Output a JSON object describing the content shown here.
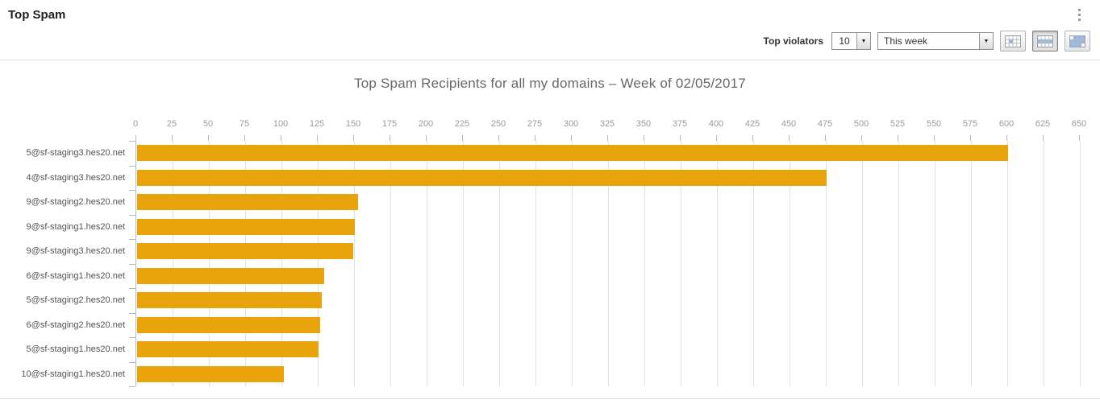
{
  "header": {
    "title": "Top Spam"
  },
  "toolbar": {
    "top_violators_label": "Top violators",
    "top_violators_value": "10",
    "period_value": "This week",
    "view_buttons": [
      {
        "name": "daily-view",
        "selected": false
      },
      {
        "name": "weekly-view",
        "selected": true
      },
      {
        "name": "monthly-view",
        "selected": false
      }
    ]
  },
  "chart_data": {
    "type": "bar",
    "orientation": "horizontal",
    "title": "Top Spam Recipients for all my domains – Week of 02/05/2017",
    "categories": [
      "5@sf-staging3.hes20.net",
      "4@sf-staging3.hes20.net",
      "9@sf-staging2.hes20.net",
      "9@sf-staging1.hes20.net",
      "9@sf-staging3.hes20.net",
      "6@sf-staging1.hes20.net",
      "5@sf-staging2.hes20.net",
      "6@sf-staging2.hes20.net",
      "5@sf-staging1.hes20.net",
      "10@sf-staging1.hes20.net"
    ],
    "values": [
      600,
      475,
      152,
      150,
      149,
      129,
      127,
      126,
      125,
      101
    ],
    "xlim": [
      0,
      650
    ],
    "x_ticks": [
      0,
      25,
      50,
      75,
      100,
      125,
      150,
      175,
      200,
      225,
      250,
      275,
      300,
      325,
      350,
      375,
      400,
      425,
      450,
      475,
      500,
      525,
      550,
      575,
      600,
      625,
      650
    ],
    "x_axis_position": "top",
    "grid": true,
    "legend_position": "none",
    "bar_color": "#E9A30B",
    "grid_color": "#e3e3e3",
    "axis_color": "#b4bac4",
    "tick_label_color": "#9b9b9b",
    "category_label_color": "#545454"
  }
}
